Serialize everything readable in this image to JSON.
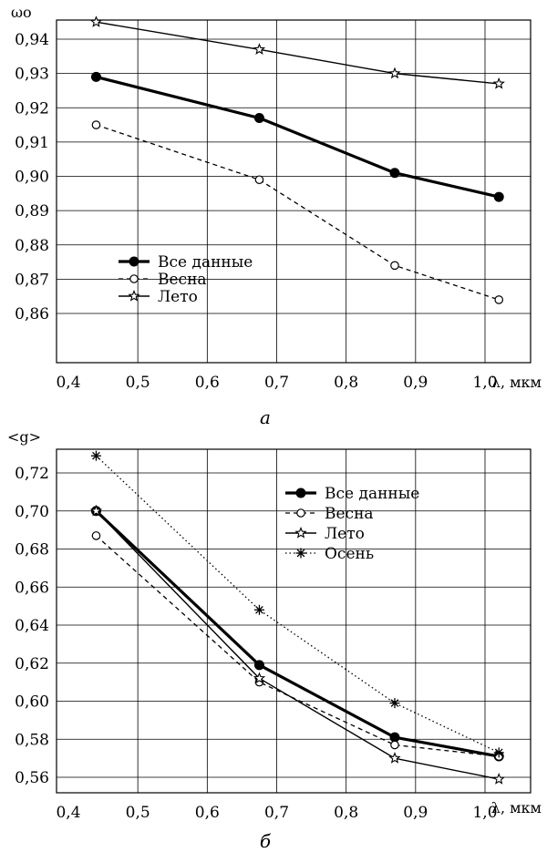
{
  "chart_data": [
    {
      "type": "line",
      "panel_label": "а",
      "ylabel": "ωo",
      "xlabel": "λ, мкм",
      "xlim": [
        0.4,
        1.05
      ],
      "ylim": [
        0.845,
        0.95
      ],
      "xticks": [
        "0,4",
        "0,5",
        "0,6",
        "0,7",
        "0,8",
        "0,9",
        "1,0"
      ],
      "yticks": [
        "0,86",
        "0,87",
        "0,88",
        "0,89",
        "0,90",
        "0,91",
        "0,92",
        "0,93",
        "0,94"
      ],
      "grid": true,
      "legend_position": "lower-left",
      "x": [
        0.44,
        0.675,
        0.87,
        1.02
      ],
      "series": [
        {
          "name": "Все данные",
          "values": [
            0.929,
            0.917,
            0.901,
            0.894
          ],
          "marker": "filled-circle",
          "line": "thick-solid"
        },
        {
          "name": "Весна",
          "values": [
            0.915,
            0.899,
            0.874,
            0.864
          ],
          "marker": "open-circle",
          "line": "dashed"
        },
        {
          "name": "Лето",
          "values": [
            0.945,
            0.937,
            0.93,
            0.927
          ],
          "marker": "star",
          "line": "solid"
        }
      ]
    },
    {
      "type": "line",
      "panel_label": "б",
      "ylabel": "<g>",
      "xlabel": "λ, мкм",
      "xlim": [
        0.4,
        1.05
      ],
      "ylim": [
        0.55,
        0.74
      ],
      "xticks": [
        "0,4",
        "0,5",
        "0,6",
        "0,7",
        "0,8",
        "0,9",
        "1,0"
      ],
      "yticks": [
        "0,56",
        "0,58",
        "0,60",
        "0,62",
        "0,64",
        "0,66",
        "0,68",
        "0,70",
        "0,72"
      ],
      "grid": true,
      "legend_position": "top-right",
      "x": [
        0.44,
        0.675,
        0.87,
        1.02
      ],
      "series": [
        {
          "name": "Все данные",
          "values": [
            0.7,
            0.619,
            0.581,
            0.571
          ],
          "marker": "filled-circle",
          "line": "thick-solid"
        },
        {
          "name": "Весна",
          "values": [
            0.687,
            0.61,
            0.577,
            0.571
          ],
          "marker": "open-circle",
          "line": "dashed"
        },
        {
          "name": "Лето",
          "values": [
            0.7,
            0.612,
            0.57,
            0.559
          ],
          "marker": "star",
          "line": "solid"
        },
        {
          "name": "Осень",
          "values": [
            0.729,
            0.648,
            0.599,
            0.573
          ],
          "marker": "asterisk",
          "line": "dotted"
        }
      ]
    }
  ]
}
